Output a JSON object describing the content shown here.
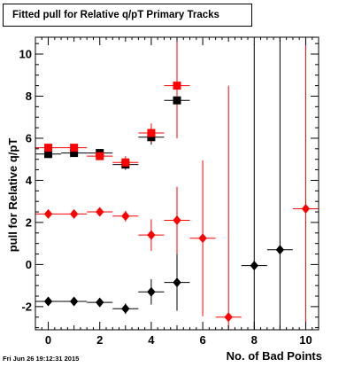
{
  "title": "Fitted pull for Relative q/pT Primary Tracks",
  "timestamp": "Fri Jun 26 19:12:31 2015",
  "chart_data": {
    "type": "scatter",
    "title": "Fitted pull for Relative q/pT Primary Tracks",
    "xlabel": "No. of Bad Points",
    "ylabel": "pull for Relative q/pT",
    "xlim": [
      -0.5,
      10.5
    ],
    "ylim": [
      -3.1,
      10.8
    ],
    "xticks": [
      0,
      2,
      4,
      6,
      8,
      10
    ],
    "yticks": [
      -2,
      0,
      2,
      4,
      6,
      8,
      10
    ],
    "grid": false,
    "series": [
      {
        "color": "#000000",
        "marker": "square",
        "points": [
          {
            "x": 0,
            "y": 5.25,
            "yerr": 0.12
          },
          {
            "x": 1,
            "y": 5.3,
            "yerr": 0.1
          },
          {
            "x": 2,
            "y": 5.3,
            "yerr": 0.15
          },
          {
            "x": 3,
            "y": 4.75,
            "yerr": 0.25
          },
          {
            "x": 4,
            "y": 6.05,
            "yerr": 0.35
          },
          {
            "x": 5,
            "y": 7.8,
            "yerr": 1.0
          }
        ]
      },
      {
        "color": "#ff0000",
        "marker": "square",
        "points": [
          {
            "x": 0,
            "y": 5.55,
            "yerr": 0.12
          },
          {
            "x": 1,
            "y": 5.55,
            "yerr": 0.12
          },
          {
            "x": 2,
            "y": 5.15,
            "yerr": 0.15
          },
          {
            "x": 3,
            "y": 4.85,
            "yerr": 0.3
          },
          {
            "x": 4,
            "y": 6.25,
            "yerr": 0.45
          },
          {
            "x": 5,
            "y": 8.5,
            "yerr": 2.5
          }
        ]
      },
      {
        "color": "#ff0000",
        "marker": "diamond",
        "points": [
          {
            "x": 0,
            "y": 2.4,
            "yerr": 0.08
          },
          {
            "x": 1,
            "y": 2.4,
            "yerr": 0.08
          },
          {
            "x": 2,
            "y": 2.5,
            "yerr": 0.12
          },
          {
            "x": 3,
            "y": 2.3,
            "yerr": 0.25
          },
          {
            "x": 4,
            "y": 1.4,
            "yerr": 0.75
          },
          {
            "x": 5,
            "y": 2.1,
            "yerr": 1.6
          },
          {
            "x": 6,
            "y": 1.25,
            "yerr": 3.7
          },
          {
            "x": 7,
            "y": -2.5,
            "yerr": 11.0
          },
          {
            "x": 10,
            "y": 2.65,
            "yerr": 8.2
          }
        ]
      },
      {
        "color": "#000000",
        "marker": "diamond",
        "points": [
          {
            "x": 0,
            "y": -1.75,
            "yerr": 0.08
          },
          {
            "x": 1,
            "y": -1.75,
            "yerr": 0.08
          },
          {
            "x": 2,
            "y": -1.8,
            "yerr": 0.12
          },
          {
            "x": 3,
            "y": -2.1,
            "yerr": 0.25
          },
          {
            "x": 4,
            "y": -1.3,
            "yerr": 0.6
          },
          {
            "x": 5,
            "y": -0.85,
            "yerr": 1.35
          },
          {
            "x": 8,
            "y": -0.05,
            "yerr": 10.5
          },
          {
            "x": 9,
            "y": 0.7,
            "yerr": 10.5
          }
        ]
      }
    ]
  }
}
